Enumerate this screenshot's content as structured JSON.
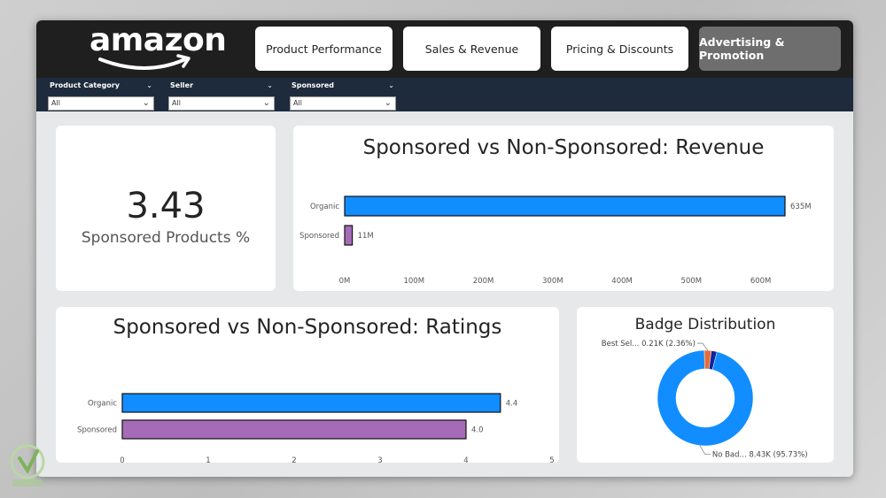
{
  "app": {
    "logo_text": "amazon",
    "nav": [
      {
        "label": "Product Performance",
        "active": false
      },
      {
        "label": "Sales & Revenue",
        "active": false
      },
      {
        "label": "Pricing & Discounts",
        "active": false
      },
      {
        "label": "Advertising & Promotion",
        "active": true
      }
    ]
  },
  "filters": [
    {
      "label": "Product Category",
      "value": "All"
    },
    {
      "label": "Seller",
      "value": "All"
    },
    {
      "label": "Sponsored",
      "value": "All"
    }
  ],
  "kpi": {
    "value": "3.43",
    "label": "Sponsored Products %"
  },
  "colors": {
    "organic": "#118DFF",
    "sponsored": "#A66BB7",
    "badge_main": "#118DFF",
    "badge_small1": "#E66C37",
    "badge_small2": "#12239E"
  },
  "chart_data": [
    {
      "type": "bar",
      "orientation": "horizontal",
      "title": "Sponsored vs Non-Sponsored: Revenue",
      "categories": [
        "Organic",
        "Sponsored"
      ],
      "values": [
        635,
        11
      ],
      "data_labels": [
        "635M",
        "11M"
      ],
      "xlim": [
        0,
        635
      ],
      "ticks": [
        0,
        100,
        200,
        300,
        400,
        500,
        600
      ],
      "tick_labels": [
        "0M",
        "100M",
        "200M",
        "300M",
        "400M",
        "500M",
        "600M"
      ],
      "grid": false
    },
    {
      "type": "bar",
      "orientation": "horizontal",
      "title": "Sponsored vs Non-Sponsored: Ratings",
      "categories": [
        "Organic",
        "Sponsored"
      ],
      "values": [
        4.4,
        4.0
      ],
      "data_labels": [
        "4.4",
        "4.0"
      ],
      "xlim": [
        0,
        5
      ],
      "ticks": [
        0,
        1,
        2,
        3,
        4,
        5
      ],
      "tick_labels": [
        "0",
        "1",
        "2",
        "3",
        "4",
        "5"
      ],
      "grid": false
    },
    {
      "type": "pie",
      "donut": true,
      "title": "Badge Distribution",
      "slices": [
        {
          "label": "No Bad... 8.43K (95.73%)",
          "value": 95.73
        },
        {
          "label": "Best Sel... 0.21K (2.36%)",
          "value": 2.36
        },
        {
          "label": "",
          "value": 1.91
        }
      ]
    }
  ]
}
